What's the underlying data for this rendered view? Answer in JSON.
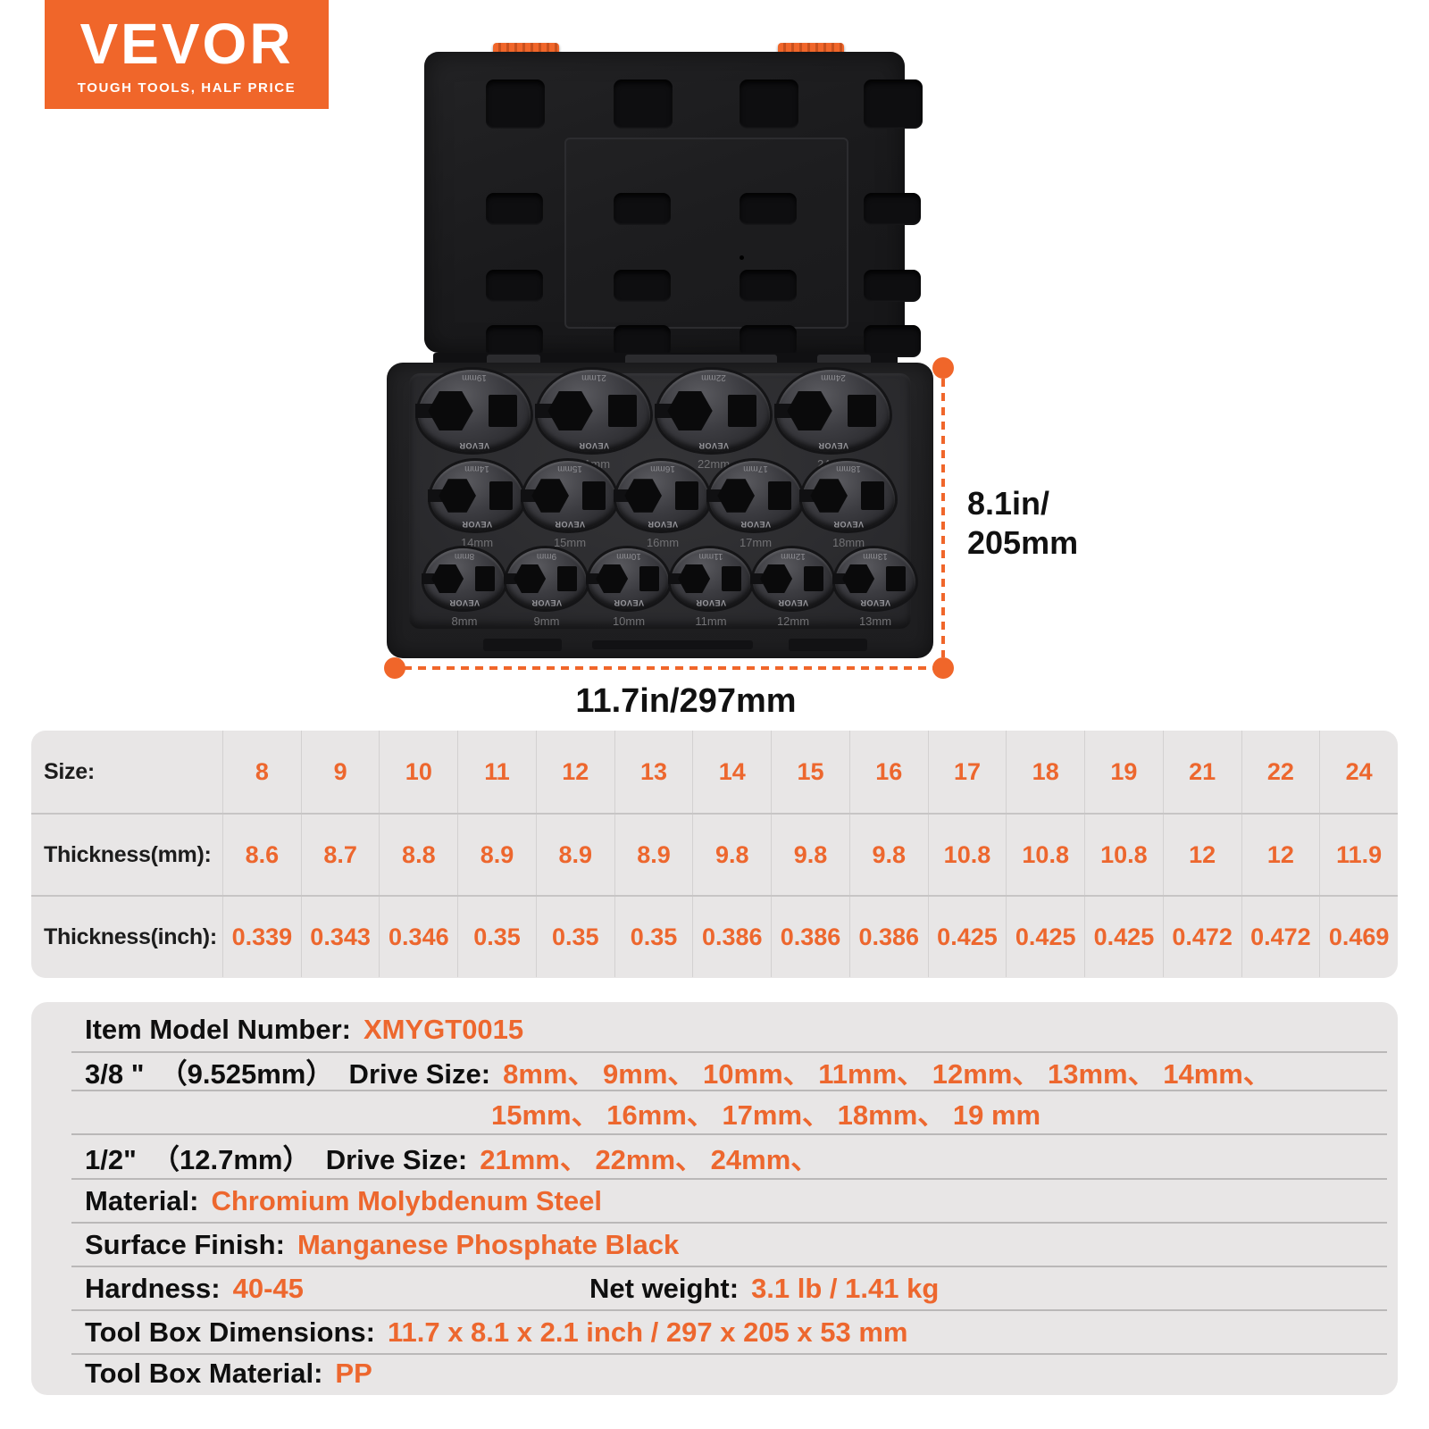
{
  "brand": {
    "name": "VEVOR",
    "tagline": "TOUGH TOOLS, HALF PRICE"
  },
  "colors": {
    "accent_orange": "#f0662a",
    "value_orange": "#ed672e",
    "panel_gray": "#e8e6e6",
    "case_black": "#1a1a1c"
  },
  "dimensions": {
    "height_line1": "8.1in/",
    "height_line2": "205mm",
    "width": "11.7in/297mm"
  },
  "case": {
    "wrench_brand": "VEVOR",
    "rows": [
      {
        "sizes": [
          "19mm",
          "21mm",
          "22mm",
          "24mm"
        ]
      },
      {
        "sizes": [
          "14mm",
          "15mm",
          "16mm",
          "17mm",
          "18mm"
        ]
      },
      {
        "sizes": [
          "8mm",
          "9mm",
          "10mm",
          "11mm",
          "12mm",
          "13mm"
        ]
      }
    ]
  },
  "spec_table": {
    "rows": [
      {
        "label": "Size:",
        "values": [
          "8",
          "9",
          "10",
          "11",
          "12",
          "13",
          "14",
          "15",
          "16",
          "17",
          "18",
          "19",
          "21",
          "22",
          "24"
        ]
      },
      {
        "label": "Thickness(mm):",
        "values": [
          "8.6",
          "8.7",
          "8.8",
          "8.9",
          "8.9",
          "8.9",
          "9.8",
          "9.8",
          "9.8",
          "10.8",
          "10.8",
          "10.8",
          "12",
          "12",
          "11.9"
        ]
      },
      {
        "label": "Thickness(inch):",
        "values": [
          "0.339",
          "0.343",
          "0.346",
          "0.35",
          "0.35",
          "0.35",
          "0.386",
          "0.386",
          "0.386",
          "0.425",
          "0.425",
          "0.425",
          "0.472",
          "0.472",
          "0.469"
        ]
      }
    ]
  },
  "details": {
    "model_label": "Item Model Number:",
    "model_value": "XMYGT0015",
    "drive38_label": "3/8 \"  （9.525mm）  Drive Size:",
    "drive38_value1": "8mm、 9mm、 10mm、 11mm、 12mm、 13mm、 14mm、",
    "drive38_value2": "15mm、 16mm、 17mm、 18mm、 19 mm",
    "drive12_label": "1/2\"  （12.7mm）  Drive Size:",
    "drive12_value": "21mm、 22mm、 24mm、",
    "material_label": "Material:",
    "material_value": "Chromium Molybdenum Steel",
    "surface_label": "Surface Finish:",
    "surface_value": "Manganese Phosphate Black",
    "hardness_label": "Hardness:",
    "hardness_value": "40-45",
    "netweight_label": "Net weight:",
    "netweight_value": "3.1 lb / 1.41 kg",
    "boxdim_label": "Tool Box Dimensions:",
    "boxdim_value": "11.7 x 8.1 x 2.1 inch / 297 x 205 x 53 mm",
    "boxmat_label": "Tool Box Material:",
    "boxmat_value": "PP"
  }
}
